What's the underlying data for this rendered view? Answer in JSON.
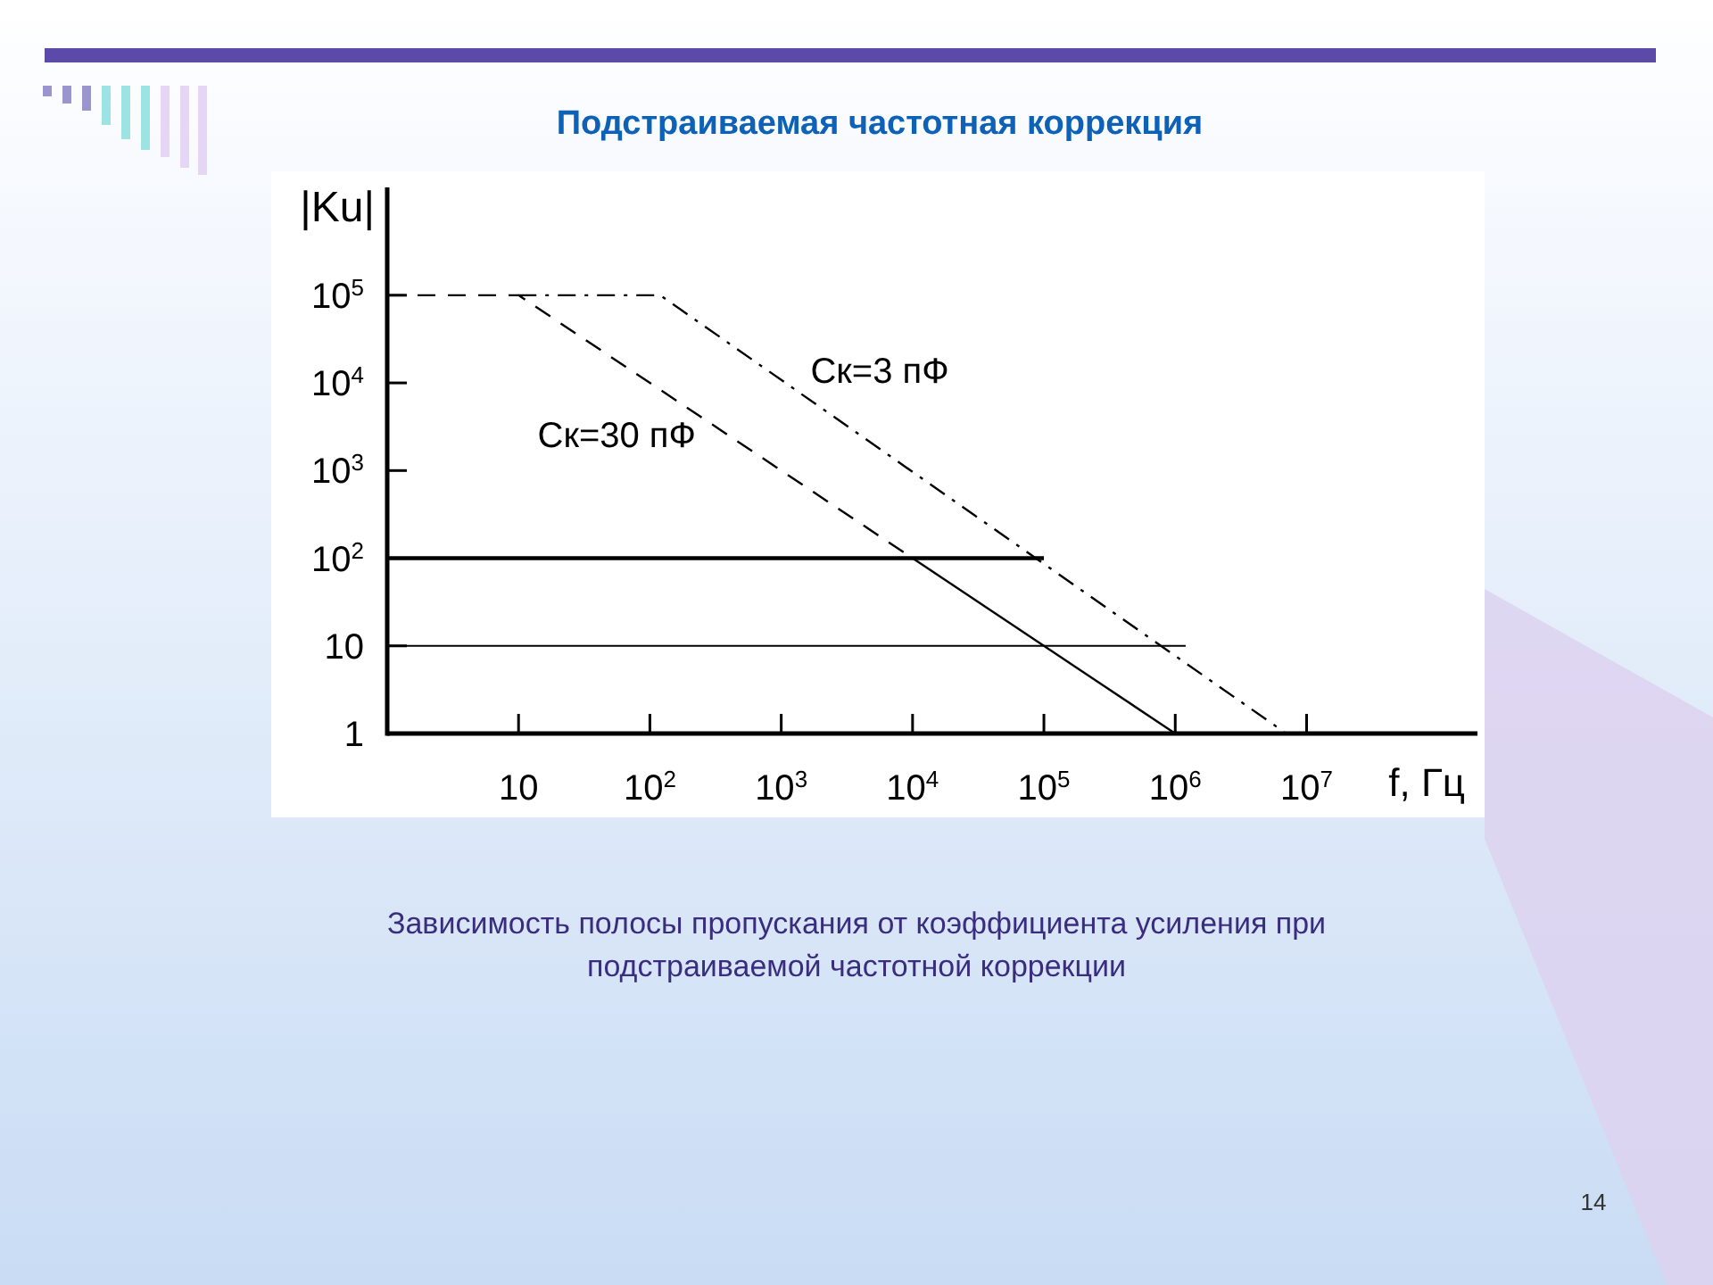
{
  "chart_data": {
    "type": "line",
    "title": "Подстраиваемая частотная коррекция",
    "subtitle": "Зависимость полосы пропускания от коэффициента усиления при подстраиваемой частотной коррекции",
    "xlabel": "f, Гц",
    "ylabel": "|Ku|",
    "log": "xy",
    "xlim": [
      1,
      200000000
    ],
    "ylim": [
      1,
      1700000
    ],
    "xticks": [
      10,
      {
        "value": 100,
        "label": "10$^{2}$"
      },
      {
        "value": 1000,
        "label": "10$^{3}$"
      },
      {
        "value": 10000,
        "label": "10$^{4}$"
      },
      {
        "value": 100000,
        "label": "10$^{5}$"
      },
      {
        "value": 1000000,
        "label": "10$^{6}$"
      },
      {
        "value": 10000000,
        "label": "10$^{7}$"
      }
    ],
    "yticks": [
      1,
      10,
      {
        "value": 100,
        "label": "10$^{2}$"
      },
      {
        "value": 1000,
        "label": "10$^{3}$"
      },
      {
        "value": 10000,
        "label": "10$^{4}$"
      },
      {
        "value": 100000,
        "label": "10$^{5}$"
      }
    ],
    "series": [
      {
        "name": "Ск=30 пФ",
        "color": "#000000",
        "line_style": "dashed",
        "x": [
          1,
          10,
          10000
        ],
        "values": [
          100000,
          100000,
          100
        ]
      },
      {
        "name": "Ск=3 пФ",
        "color": "#000000",
        "line_style": "dashdot",
        "x": [
          10,
          120,
          7000000
        ],
        "values": [
          100000,
          100000,
          1
        ]
      },
      {
        "color": "#000000",
        "line_style": "solid",
        "x": [
          10000,
          1000000
        ],
        "values": [
          100,
          1
        ]
      },
      {
        "color": "#000000",
        "line_style": "solid",
        "x": [
          1,
          100000
        ],
        "values": [
          100,
          100
        ]
      },
      {
        "color": "#000000",
        "line_style": "solid",
        "x": [
          1,
          1200000
        ],
        "values": [
          10,
          10
        ]
      }
    ],
    "annotations": [
      "14"
    ]
  }
}
